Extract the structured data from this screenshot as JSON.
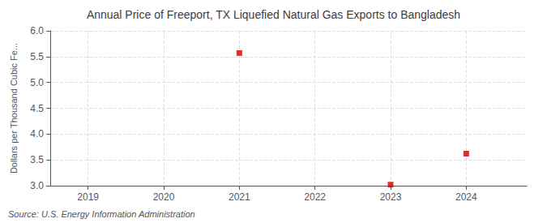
{
  "chart_data": {
    "type": "scatter",
    "title": "Annual Price of Freeport, TX Liquefied Natural Gas Exports to Bangladesh",
    "ylabel": "Dollars per Thousand Cubic Fe...",
    "source": "Source: U.S. Energy Information Administration",
    "x": [
      2021,
      2023,
      2024
    ],
    "values": [
      5.57,
      3.02,
      3.62
    ],
    "color": "#cc0000",
    "marker": "square",
    "xlim": [
      2018.5,
      2024.8
    ],
    "xticks": [
      2019,
      2020,
      2021,
      2022,
      2023,
      2024
    ],
    "ylim": [
      3.0,
      6.0
    ],
    "yticks": [
      {
        "value": 3.0,
        "label": "3.0"
      },
      {
        "value": 3.5,
        "label": "3.5"
      },
      {
        "value": 4.0,
        "label": "4.0"
      },
      {
        "value": 4.5,
        "label": "4.5"
      },
      {
        "value": 5.0,
        "label": "5.0"
      },
      {
        "value": 5.5,
        "label": "5.5"
      },
      {
        "value": 6.0,
        "label": "6.0"
      }
    ],
    "grid": true
  }
}
